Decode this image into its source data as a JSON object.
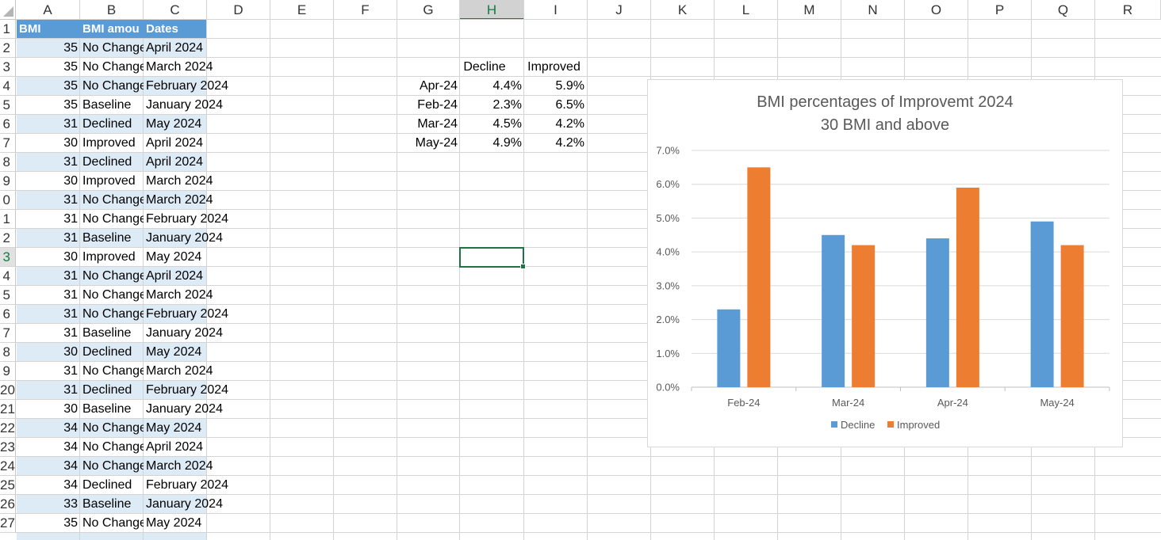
{
  "columns": [
    "A",
    "B",
    "C",
    "D",
    "E",
    "F",
    "G",
    "H",
    "I",
    "J",
    "K",
    "L",
    "M",
    "N",
    "O",
    "P",
    "Q",
    "R"
  ],
  "rows": [
    "1",
    "2",
    "3",
    "4",
    "5",
    "6",
    "7",
    "8",
    "9",
    "0",
    "1",
    "2",
    "3",
    "4",
    "5",
    "6",
    "7",
    "8",
    "9",
    "20",
    "21",
    "22",
    "23",
    "24",
    "25",
    "26",
    "27"
  ],
  "selected_column": "H",
  "selected_row": "3",
  "table": {
    "headers": [
      "BMI",
      "BMI amou",
      "Dates"
    ],
    "rows": [
      [
        "35",
        "No Change",
        "April 2024"
      ],
      [
        "35",
        "No Change",
        "March 2024"
      ],
      [
        "35",
        "No Change",
        "February 2024"
      ],
      [
        "35",
        "Baseline",
        "January 2024"
      ],
      [
        "31",
        "Declined",
        "May 2024"
      ],
      [
        "30",
        "Improved",
        "April 2024"
      ],
      [
        "31",
        "Declined",
        "April 2024"
      ],
      [
        "30",
        "Improved",
        "March 2024"
      ],
      [
        "31",
        "No Change",
        "March 2024"
      ],
      [
        "31",
        "No Change",
        "February 2024"
      ],
      [
        "31",
        "Baseline",
        "January 2024"
      ],
      [
        "30",
        "Improved",
        "May 2024"
      ],
      [
        "31",
        "No Change",
        "April 2024"
      ],
      [
        "31",
        "No Change",
        "March 2024"
      ],
      [
        "31",
        "No Change",
        "February 2024"
      ],
      [
        "31",
        "Baseline",
        "January 2024"
      ],
      [
        "30",
        "Declined",
        "May 2024"
      ],
      [
        "31",
        "No Change",
        "March 2024"
      ],
      [
        "31",
        "Declined",
        "February 2024"
      ],
      [
        "30",
        "Baseline",
        "January 2024"
      ],
      [
        "34",
        "No Change",
        "May 2024"
      ],
      [
        "34",
        "No Change",
        "April 2024"
      ],
      [
        "34",
        "No Change",
        "March 2024"
      ],
      [
        "34",
        "Declined",
        "February 2024"
      ],
      [
        "33",
        "Baseline",
        "January 2024"
      ],
      [
        "35",
        "No Change",
        "May 2024"
      ]
    ]
  },
  "summary": {
    "headers": [
      "Decline",
      "Improved"
    ],
    "rows": [
      {
        "label": "Apr-24",
        "decline": "4.4%",
        "improved": "5.9%"
      },
      {
        "label": "Feb-24",
        "decline": "2.3%",
        "improved": "6.5%"
      },
      {
        "label": "Mar-24",
        "decline": "4.5%",
        "improved": "4.2%"
      },
      {
        "label": "May-24",
        "decline": "4.9%",
        "improved": "4.2%"
      }
    ]
  },
  "chart_data": {
    "type": "bar",
    "title": [
      "BMI percentages of Improvemt 2024",
      "30 BMI and above"
    ],
    "categories": [
      "Feb-24",
      "Mar-24",
      "Apr-24",
      "May-24"
    ],
    "series": [
      {
        "name": "Decline",
        "values": [
          2.3,
          4.5,
          4.4,
          4.9
        ],
        "color": "#5b9bd5"
      },
      {
        "name": "Improved",
        "values": [
          6.5,
          4.2,
          5.9,
          4.2
        ],
        "color": "#ed7d31"
      }
    ],
    "ylim": [
      0,
      7
    ],
    "yticks": [
      "0.0%",
      "1.0%",
      "2.0%",
      "3.0%",
      "4.0%",
      "5.0%",
      "6.0%",
      "7.0%"
    ],
    "grid": true,
    "legend": "bottom"
  }
}
